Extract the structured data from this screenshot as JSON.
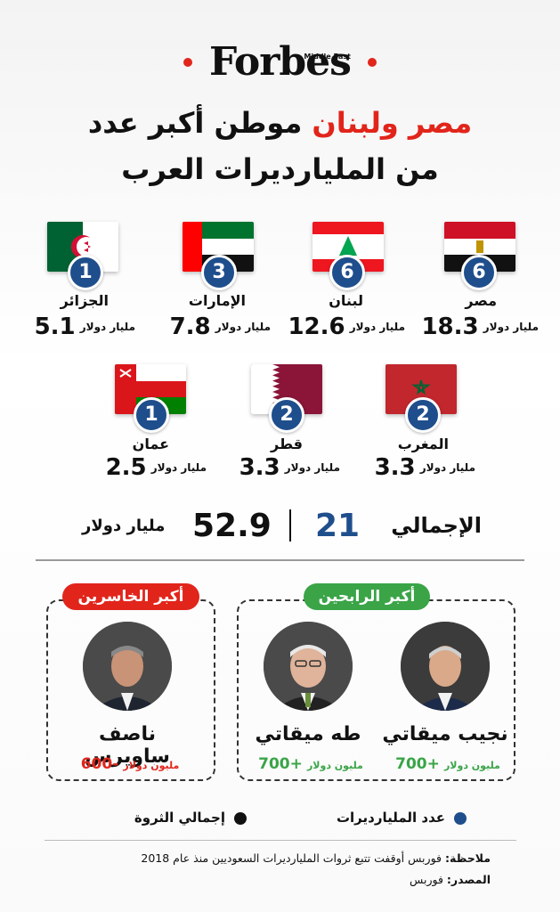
{
  "brand": {
    "name": "Forbes",
    "edition": "Middle East"
  },
  "headline": {
    "line1_highlight": "مصر ولبنان",
    "line1_rest": "موطن أكبر عدد",
    "line2": "من المليارديرات العرب"
  },
  "unit_billion": "مليار دولار",
  "unit_million": "مليون دولار",
  "countries": [
    {
      "name": "مصر",
      "count": "6",
      "wealth": "18.3"
    },
    {
      "name": "لبنان",
      "count": "6",
      "wealth": "12.6"
    },
    {
      "name": "الإمارات",
      "count": "3",
      "wealth": "7.8"
    },
    {
      "name": "الجزائر",
      "count": "1",
      "wealth": "5.1"
    },
    {
      "name": "المغرب",
      "count": "2",
      "wealth": "3.3"
    },
    {
      "name": "قطر",
      "count": "2",
      "wealth": "3.3"
    },
    {
      "name": "عمان",
      "count": "1",
      "wealth": "2.5"
    }
  ],
  "totals": {
    "label": "الإجمالي",
    "count": "21",
    "wealth": "52.9"
  },
  "gainers": {
    "title": "أكبر الرابحين",
    "color": "#3aa447",
    "people": [
      {
        "name": "نجيب ميقاتي",
        "change": "+700"
      },
      {
        "name": "طه ميقاتي",
        "change": "+700"
      }
    ]
  },
  "losers": {
    "title": "أكبر الخاسرين",
    "color": "#e1251b",
    "people": [
      {
        "name": "ناصف ساويرس",
        "change": "-600"
      }
    ]
  },
  "legend": {
    "count_label": "عدد المليارديرات",
    "count_color": "#1f4e8c",
    "wealth_label": "إجمالي الثروة",
    "wealth_color": "#111111"
  },
  "footer": {
    "note_label": "ملاحظة:",
    "note_text": "فوربس أوقفت تتبع ثروات المليارديرات السعوديين منذ عام 2018",
    "source_label": "المصدر:",
    "source_text": "فوربس"
  }
}
